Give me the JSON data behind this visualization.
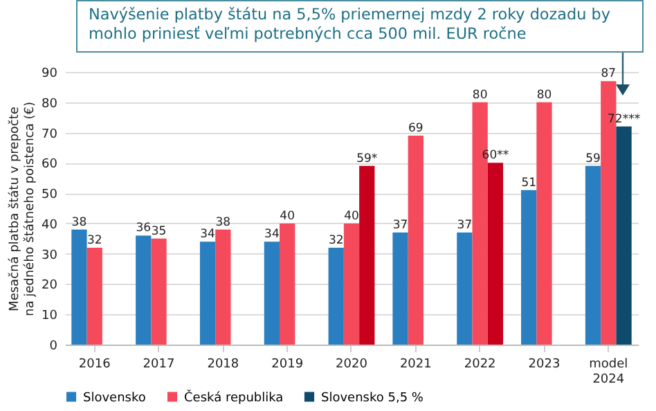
{
  "chart_data": {
    "type": "bar",
    "title": "Navýšenie platby štátu na 5,5% priemernej mzdy 2 roky dozadu by mohlo priniesť veľmi potrebných cca 500 mil. EUR ročne",
    "ylabel": "Mesačná platba štátu v prepočte na jedného štátneho poistenca (€)",
    "categories": [
      "2016",
      "2017",
      "2018",
      "2019",
      "2020",
      "2021",
      "2022",
      "2023",
      "model 2024"
    ],
    "series": [
      {
        "name": "Slovensko",
        "color": "#2a7fc0",
        "values": [
          38,
          36,
          34,
          34,
          32,
          37,
          37,
          51,
          59
        ],
        "value_labels": [
          "38",
          "36",
          "34",
          "34",
          "32",
          "37",
          "37",
          "51",
          "59"
        ]
      },
      {
        "name": "Česká republika",
        "color": "#f44a5c",
        "values": [
          32,
          35,
          38,
          40,
          40,
          69,
          80,
          80,
          87
        ],
        "value_labels": [
          "32",
          "35",
          "38",
          "40",
          "40",
          "69",
          "80",
          "80",
          "87"
        ]
      },
      {
        "color": "#c8001e",
        "values": [
          null,
          null,
          null,
          null,
          59,
          null,
          60,
          null,
          null
        ],
        "value_labels": [
          null,
          null,
          null,
          null,
          "59*",
          null,
          "60**",
          null,
          null
        ]
      },
      {
        "name": "Slovensko 5,5 %",
        "color": "#0d4a6b",
        "values": [
          null,
          null,
          null,
          null,
          null,
          null,
          null,
          null,
          72
        ],
        "value_labels": [
          null,
          null,
          null,
          null,
          null,
          null,
          null,
          null,
          "72***"
        ]
      }
    ],
    "ylim": [
      0,
      90
    ],
    "yticks": [
      0,
      10,
      20,
      30,
      40,
      50,
      60,
      70,
      80,
      90
    ],
    "grid": "y",
    "legend": "bottom"
  }
}
